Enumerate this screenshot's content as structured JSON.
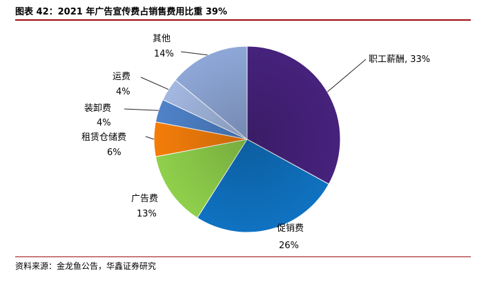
{
  "header": {
    "title": "图表 42：2021 年广告宣传费占销售费用比重 39%"
  },
  "footer": {
    "source": "资料来源：金龙鱼公告，华鑫证券研究"
  },
  "chart_data": {
    "type": "pie",
    "title": "",
    "slices": [
      {
        "name": "职工薪酬",
        "value": 33,
        "label": "职工薪酬, 33%",
        "color": "#46227c"
      },
      {
        "name": "促销费",
        "value": 26,
        "label": "26%",
        "color": "#0f72c1"
      },
      {
        "name": "广告费",
        "value": 13,
        "label": "13%",
        "color": "#8fd04b"
      },
      {
        "name": "租赁仓储费",
        "value": 6,
        "label": "6%",
        "color": "#f47d0a"
      },
      {
        "name": "装卸费",
        "value": 4,
        "label": "4%",
        "color": "#4f82c9"
      },
      {
        "name": "运费",
        "value": 4,
        "label": "4%",
        "color": "#a3b8e1"
      },
      {
        "name": "其他",
        "value": 14,
        "label": "14%",
        "color": "#8ea7d7"
      }
    ]
  }
}
